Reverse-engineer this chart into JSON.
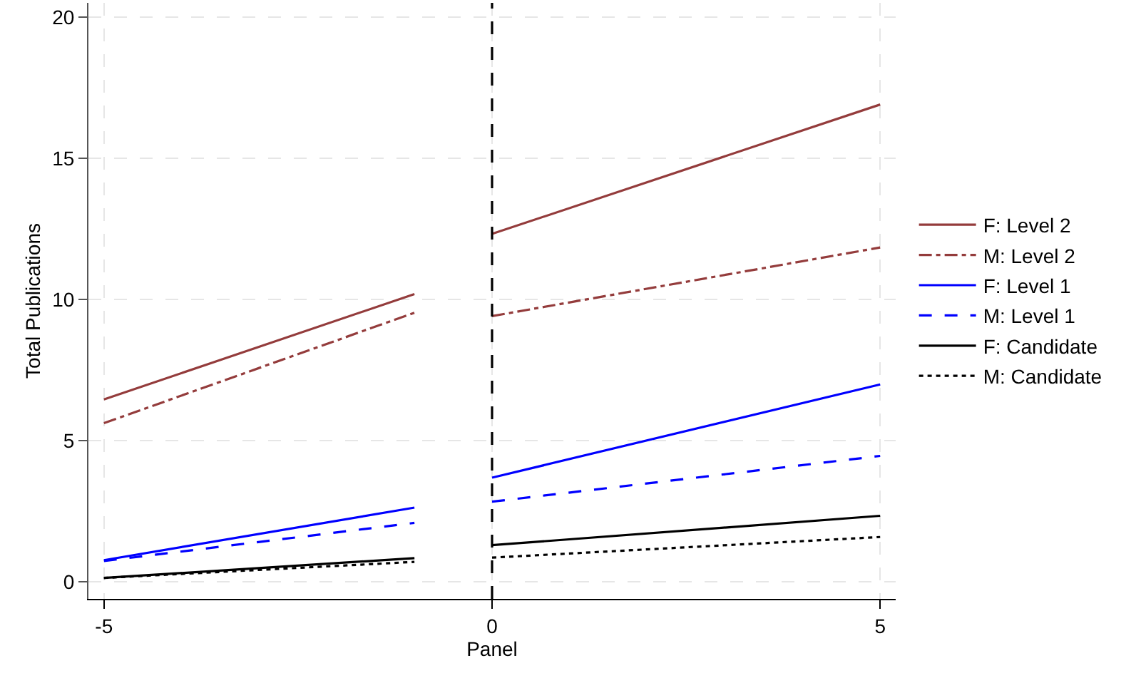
{
  "chart_data": {
    "type": "line",
    "xlabel": "Panel",
    "ylabel": "Total Publications",
    "x": [
      -5,
      -1,
      null,
      0,
      5
    ],
    "series": [
      {
        "name": "F: Level 2",
        "color": "#943c3c",
        "line_style": "solid",
        "values": [
          6.46,
          10.19,
          null,
          12.32,
          16.9
        ]
      },
      {
        "name": "M: Level 2",
        "color": "#943c3c",
        "line_style": "dashdot",
        "values": [
          5.62,
          9.53,
          null,
          9.41,
          11.84
        ]
      },
      {
        "name": "F: Level 1",
        "color": "#0000ff",
        "line_style": "solid",
        "values": [
          0.77,
          2.63,
          null,
          3.69,
          6.99
        ]
      },
      {
        "name": "M: Level 1",
        "color": "#0000ff",
        "line_style": "dashed",
        "values": [
          0.74,
          2.09,
          null,
          2.84,
          4.46
        ]
      },
      {
        "name": "F: Candidate",
        "color": "#000000",
        "line_style": "solid",
        "values": [
          0.14,
          0.84,
          null,
          1.3,
          2.34
        ]
      },
      {
        "name": "M: Candidate",
        "color": "#000000",
        "line_style": "dotted",
        "values": [
          0.14,
          0.71,
          null,
          0.86,
          1.59
        ]
      }
    ],
    "xlim": [
      -5.2,
      5.2
    ],
    "xticks": [
      -5,
      0,
      5
    ],
    "ylim": [
      -0.6,
      20.5
    ],
    "yticks": [
      0,
      5,
      10,
      15,
      20
    ],
    "ref_lines": [
      {
        "axis": "x",
        "value": 0,
        "color": "#000000",
        "line_style": "dashed"
      }
    ],
    "grid": true,
    "legend": "right",
    "marker": "none"
  }
}
